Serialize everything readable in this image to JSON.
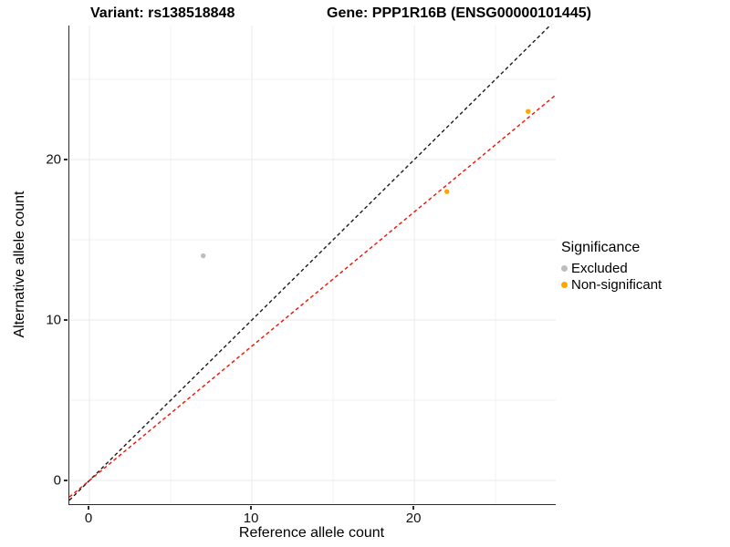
{
  "title": {
    "variant": "Variant: rs138518848",
    "gene": "Gene: PPP1R16B (ENSG00000101445)"
  },
  "axes": {
    "x": {
      "label": "Reference allele count",
      "tick_labels": [
        "0",
        "10",
        "20"
      ],
      "tick_values": [
        0,
        10,
        20
      ]
    },
    "y": {
      "label": "Alternative allele count",
      "tick_labels": [
        "0",
        "10",
        "20"
      ],
      "tick_values": [
        0,
        10,
        20
      ]
    }
  },
  "legend": {
    "title": "Significance",
    "items": [
      {
        "label": "Excluded",
        "color": "#BDBDBD"
      },
      {
        "label": "Non-significant",
        "color": "#FFA500"
      }
    ]
  },
  "chart_data": {
    "type": "scatter",
    "title": "Variant: rs138518848 | Gene: PPP1R16B (ENSG00000101445)",
    "xlabel": "Reference allele count",
    "ylabel": "Alternative allele count",
    "xlim": [
      -1.24,
      28.7
    ],
    "ylim": [
      -1.48,
      28.35
    ],
    "grid": {
      "major": [
        0,
        10,
        20
      ],
      "minor": [
        5,
        15,
        25
      ],
      "major_color": "#e9e9e9",
      "minor_color": "#f2f2f2"
    },
    "legend_position": "right",
    "series": [
      {
        "name": "Excluded",
        "color": "#BDBDBD",
        "points": [
          [
            7,
            14
          ]
        ]
      },
      {
        "name": "Non-significant",
        "color": "#FFA500",
        "points": [
          [
            22,
            18
          ],
          [
            27,
            23
          ]
        ]
      }
    ],
    "lines": [
      {
        "name": "identity-line",
        "color": "#1a1a1a",
        "slope": 1.0,
        "intercept": 0,
        "dash": "4 3"
      },
      {
        "name": "fit-line",
        "color": "#ee1100",
        "slope": 0.837,
        "intercept": 0,
        "dash": "4 3"
      }
    ]
  }
}
